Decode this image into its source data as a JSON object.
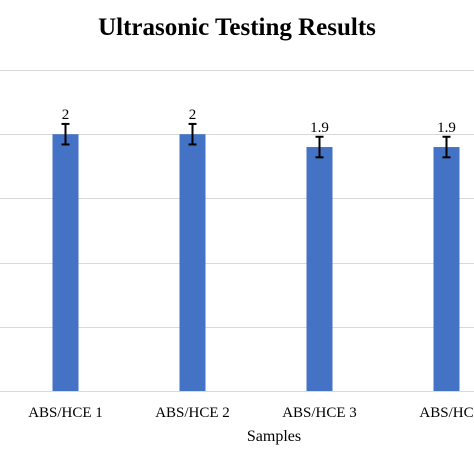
{
  "chart_data": {
    "type": "bar",
    "title": "Ultrasonic Testing Results",
    "xlabel": "Samples",
    "ylabel": "",
    "categories": [
      "ABS/HCE 1",
      "ABS/HCE 2",
      "ABS/HCE 3",
      "ABS/HC"
    ],
    "values": [
      2,
      2,
      1.9,
      1.9
    ],
    "data_labels": [
      "2",
      "2",
      "1.9",
      "1.9"
    ],
    "error": [
      0.08,
      0.08,
      0.08,
      0.08
    ],
    "ylim": [
      0,
      2.5
    ],
    "grid": true,
    "legend": "none",
    "colors": {
      "bar": "#4472C4",
      "grid": "#d9d9d9",
      "error_bar": "#000000"
    }
  }
}
